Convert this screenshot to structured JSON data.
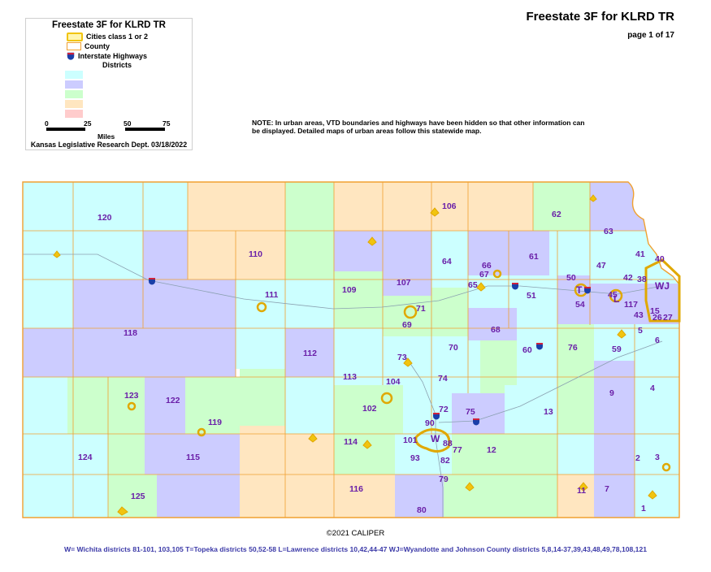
{
  "header": {
    "title": "Freestate 3F for KLRD TR",
    "page": "page 1 of 17"
  },
  "legend": {
    "title": "Freestate 3F for KLRD TR",
    "items": [
      {
        "label": "Cities class 1 or 2",
        "icon": "city-swatch"
      },
      {
        "label": "County",
        "icon": "county-swatch"
      },
      {
        "label": "Interstate Highways",
        "icon": "interstate-shield-icon"
      }
    ],
    "districts_label": "Districts",
    "district_colors": [
      "#ccffff",
      "#ccccff",
      "#ccffcc",
      "#ffe6c0",
      "#ffcccc"
    ],
    "scale": {
      "ticks": [
        "0",
        "25",
        "50",
        "75"
      ],
      "unit": "Miles"
    },
    "credit": "Kansas Legislative Research Dept. 03/18/2022"
  },
  "note": "NOTE:  In urban areas, VTD boundaries and highways have been hidden so that other information can be displayed.  Detailed maps of urban areas follow this statewide map.",
  "copyright": "©2021 CALIPER",
  "footer": "W= Wichita districts 81-101, 103,105    T=Topeka districts 50,52-58   L=Lawrence districts 10,42,44-47     WJ=Wyandotte and Johnson County districts 5,8,14-37,39,43,48,49,78,108,121",
  "colors": {
    "cyan": "#ccffff",
    "lavender": "#ccccff",
    "green": "#ccffcc",
    "peach": "#ffe6c0",
    "county_line": "#f0a030",
    "city": "#f1c40f",
    "label": "#6a1fa8"
  },
  "map": {
    "district_labels": [
      "120",
      "106",
      "62",
      "63",
      "41",
      "40",
      "110",
      "64",
      "66",
      "61",
      "67",
      "47",
      "42",
      "38",
      "WJ",
      "111",
      "109",
      "107",
      "65",
      "50",
      "T",
      "51",
      "45",
      "L",
      "54",
      "117",
      "43",
      "15",
      "26",
      "27",
      "118",
      "71",
      "69",
      "68",
      "5",
      "6",
      "112",
      "73",
      "70",
      "60",
      "76",
      "59",
      "113",
      "104",
      "74",
      "123",
      "122",
      "102",
      "72",
      "75",
      "13",
      "9",
      "4",
      "119",
      "90",
      "W",
      "101",
      "114",
      "88",
      "77",
      "12",
      "124",
      "115",
      "93",
      "82",
      "2",
      "3",
      "79",
      "116",
      "11",
      "7",
      "125",
      "80",
      "1"
    ]
  }
}
